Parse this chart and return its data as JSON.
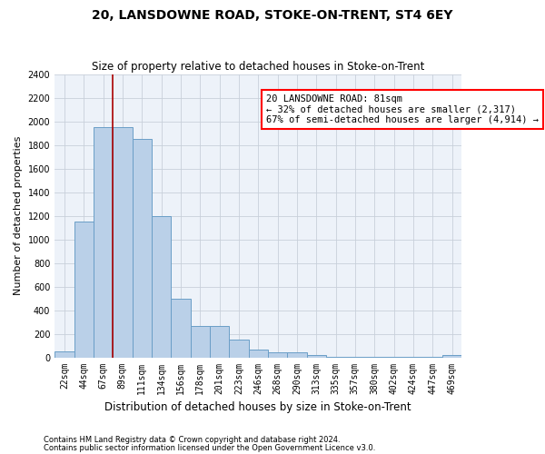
{
  "title": "20, LANSDOWNE ROAD, STOKE-ON-TRENT, ST4 6EY",
  "subtitle": "Size of property relative to detached houses in Stoke-on-Trent",
  "xlabel": "Distribution of detached houses by size in Stoke-on-Trent",
  "ylabel": "Number of detached properties",
  "categories": [
    "22sqm",
    "44sqm",
    "67sqm",
    "89sqm",
    "111sqm",
    "134sqm",
    "156sqm",
    "178sqm",
    "201sqm",
    "223sqm",
    "246sqm",
    "268sqm",
    "290sqm",
    "313sqm",
    "335sqm",
    "357sqm",
    "380sqm",
    "402sqm",
    "424sqm",
    "447sqm",
    "469sqm"
  ],
  "values": [
    50,
    1150,
    1950,
    1950,
    1850,
    1200,
    500,
    270,
    270,
    150,
    65,
    40,
    40,
    20,
    5,
    5,
    5,
    5,
    5,
    5,
    20
  ],
  "bar_color": "#bad0e8",
  "bar_edge_color": "#6a9ec7",
  "grid_color": "#c8d0da",
  "bg_color": "#edf2f9",
  "vline_color": "#aa0000",
  "vline_x_pos": 3.0,
  "annotation_line1": "20 LANSDOWNE ROAD: 81sqm",
  "annotation_line2": "← 32% of detached houses are smaller (2,317)",
  "annotation_line3": "67% of semi-detached houses are larger (4,914) →",
  "footer1": "Contains HM Land Registry data © Crown copyright and database right 2024.",
  "footer2": "Contains public sector information licensed under the Open Government Licence v3.0.",
  "ylim": [
    0,
    2400
  ],
  "yticks": [
    0,
    200,
    400,
    600,
    800,
    1000,
    1200,
    1400,
    1600,
    1800,
    2000,
    2200,
    2400
  ],
  "title_fontsize": 10,
  "subtitle_fontsize": 8.5,
  "ylabel_fontsize": 8,
  "xlabel_fontsize": 8.5,
  "tick_fontsize": 7,
  "footer_fontsize": 6,
  "ann_fontsize": 7.5
}
